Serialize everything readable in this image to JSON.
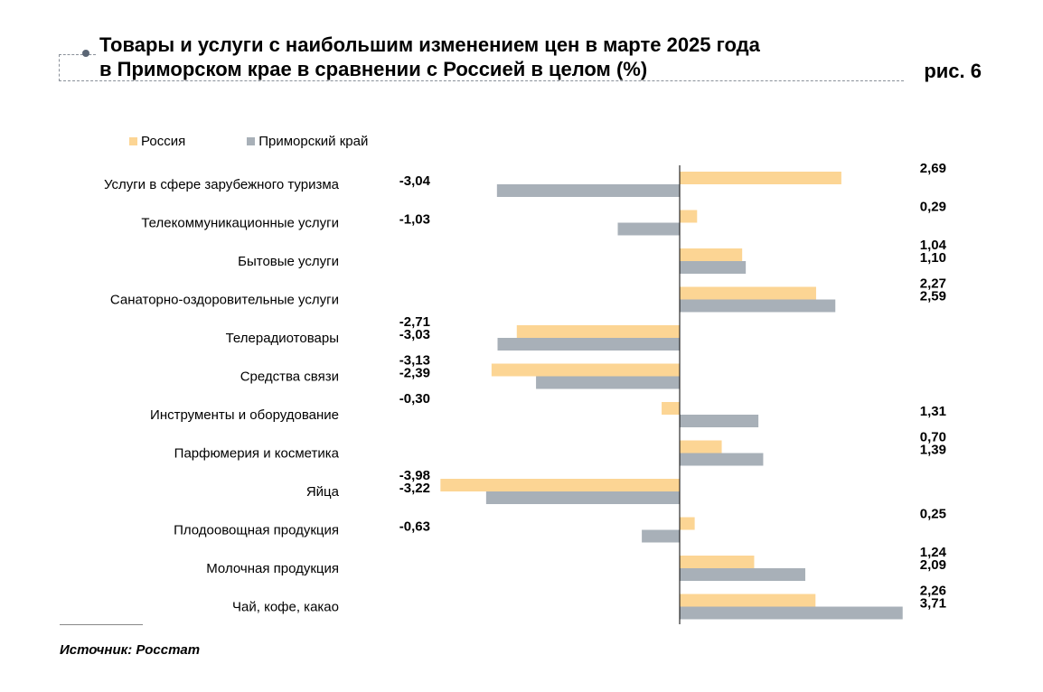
{
  "title_line1": "Товары и услуги с наибольшим изменением цен в марте 2025 года",
  "title_line2": "в Приморском крае в сравнении с Россией в целом (%)",
  "figure_label": "рис. 6",
  "source": "Источник: Росстат",
  "colors": {
    "russia": "#fcd594",
    "primorsky": "#a8b0b8",
    "axis": "#000000"
  },
  "chart_data": {
    "type": "bar",
    "orientation": "horizontal",
    "categories": [
      "Услуги в сфере зарубежного туризма",
      "Телекоммуникационные услуги",
      "Бытовые услуги",
      "Санаторно-оздоровительные услуги",
      "Телерадиотовары",
      "Средства связи",
      "Инструменты и оборудование",
      "Парфюмерия и косметика",
      "Яйца",
      "Плодоовощная продукция",
      "Молочная продукция",
      "Чай, кофе, какао"
    ],
    "series": [
      {
        "name": "Россия",
        "color": "#fcd594",
        "values": [
          2.69,
          0.29,
          1.04,
          2.27,
          -2.71,
          -3.13,
          -0.3,
          0.7,
          -3.98,
          0.25,
          1.24,
          2.26
        ],
        "labels": [
          "2,69",
          "0,29",
          "1,04",
          "2,27",
          "-2,71",
          "-3,13",
          "-0,30",
          "0,70",
          "-3,98",
          "0,25",
          "1,24",
          "2,26"
        ]
      },
      {
        "name": "Приморский край",
        "color": "#a8b0b8",
        "values": [
          -3.04,
          -1.03,
          1.1,
          2.59,
          -3.03,
          -2.39,
          1.31,
          1.39,
          -3.22,
          -0.63,
          2.09,
          3.71
        ],
        "labels": [
          "-3,04",
          "-1,03",
          "1,10",
          "2,59",
          "-3,03",
          "-2,39",
          "1,31",
          "1,39",
          "-3,22",
          "-0,63",
          "2,09",
          "3,71"
        ]
      }
    ],
    "xlim": [
      -4,
      4
    ],
    "grid": false,
    "legend": "top-left"
  }
}
